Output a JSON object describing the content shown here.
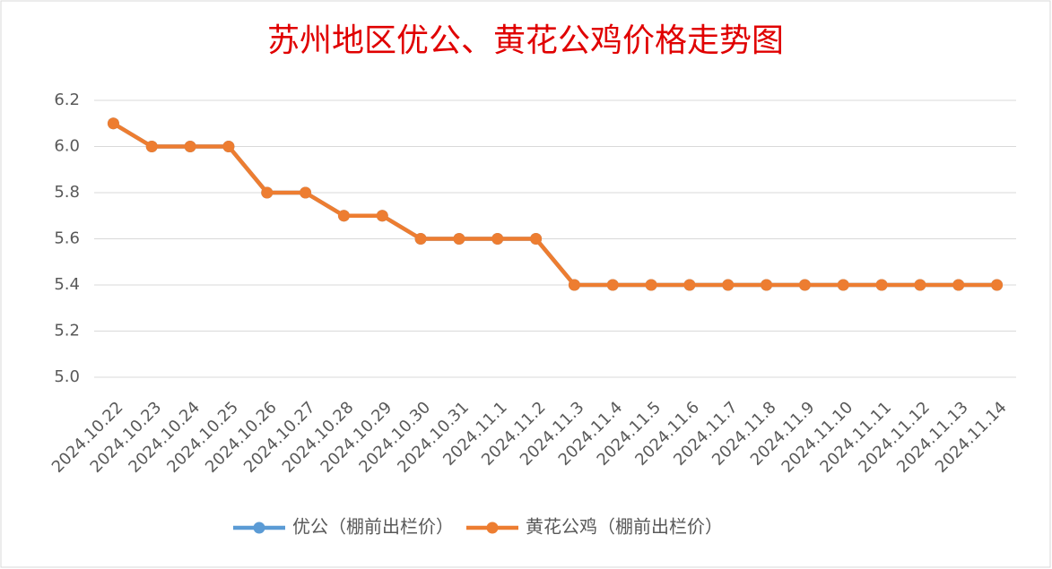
{
  "chart_data": {
    "type": "line",
    "title": "苏州地区优公、黄花公鸡价格走势图",
    "categories": [
      "2024.10.22",
      "2024.10.23",
      "2024.10.24",
      "2024.10.25",
      "2024.10.26",
      "2024.10.27",
      "2024.10.28",
      "2024.10.29",
      "2024.10.30",
      "2024.10.31",
      "2024.11.1",
      "2024.11.2",
      "2024.11.3",
      "2024.11.4",
      "2024.11.5",
      "2024.11.6",
      "2024.11.7",
      "2024.11.8",
      "2024.11.9",
      "2024.11.10",
      "2024.11.11",
      "2024.11.12",
      "2024.11.13",
      "2024.11.14"
    ],
    "series": [
      {
        "name": "优公（棚前出栏价）",
        "color": "#5b9bd5",
        "values": [
          6.1,
          6.0,
          6.0,
          6.0,
          5.8,
          5.8,
          5.7,
          5.7,
          5.6,
          5.6,
          5.6,
          5.6,
          5.4,
          5.4,
          5.4,
          5.4,
          5.4,
          5.4,
          5.4,
          5.4,
          5.4,
          5.4,
          5.4,
          5.4
        ]
      },
      {
        "name": "黄花公鸡（棚前出栏价）",
        "color": "#ed7d31",
        "values": [
          6.1,
          6.0,
          6.0,
          6.0,
          5.8,
          5.8,
          5.7,
          5.7,
          5.6,
          5.6,
          5.6,
          5.6,
          5.4,
          5.4,
          5.4,
          5.4,
          5.4,
          5.4,
          5.4,
          5.4,
          5.4,
          5.4,
          5.4,
          5.4
        ]
      }
    ],
    "ylim": [
      5.0,
      6.2
    ],
    "yticks": [
      {
        "value": 5.0,
        "label": "5.0"
      },
      5.2,
      5.4,
      5.6,
      5.8,
      {
        "value": 6.0,
        "label": "6.0"
      },
      6.2
    ],
    "grid": true,
    "legend": "bottom"
  }
}
